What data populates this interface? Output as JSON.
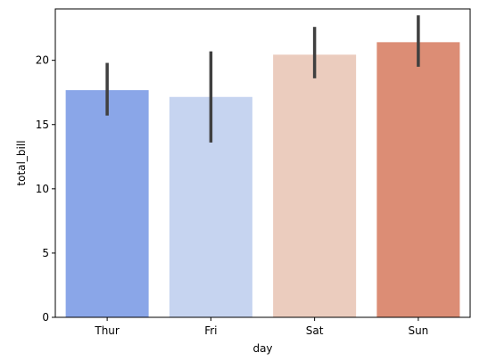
{
  "chart_data": {
    "type": "bar",
    "title": "",
    "xlabel": "day",
    "ylabel": "total_bill",
    "categories": [
      "Thur",
      "Fri",
      "Sat",
      "Sun"
    ],
    "values": [
      17.68,
      17.15,
      20.44,
      21.41
    ],
    "error_bars": [
      {
        "low": 15.7,
        "high": 19.8
      },
      {
        "low": 13.6,
        "high": 20.7
      },
      {
        "low": 18.6,
        "high": 22.6
      },
      {
        "low": 19.5,
        "high": 23.5
      }
    ],
    "colors": [
      "#8aa6e8",
      "#c6d4f0",
      "#ebccbe",
      "#dc8d75"
    ],
    "error_bar_color": "#404040",
    "ylim": [
      0,
      24
    ],
    "yticks": [
      0,
      5,
      10,
      15,
      20
    ],
    "grid": false,
    "legend": "none"
  }
}
